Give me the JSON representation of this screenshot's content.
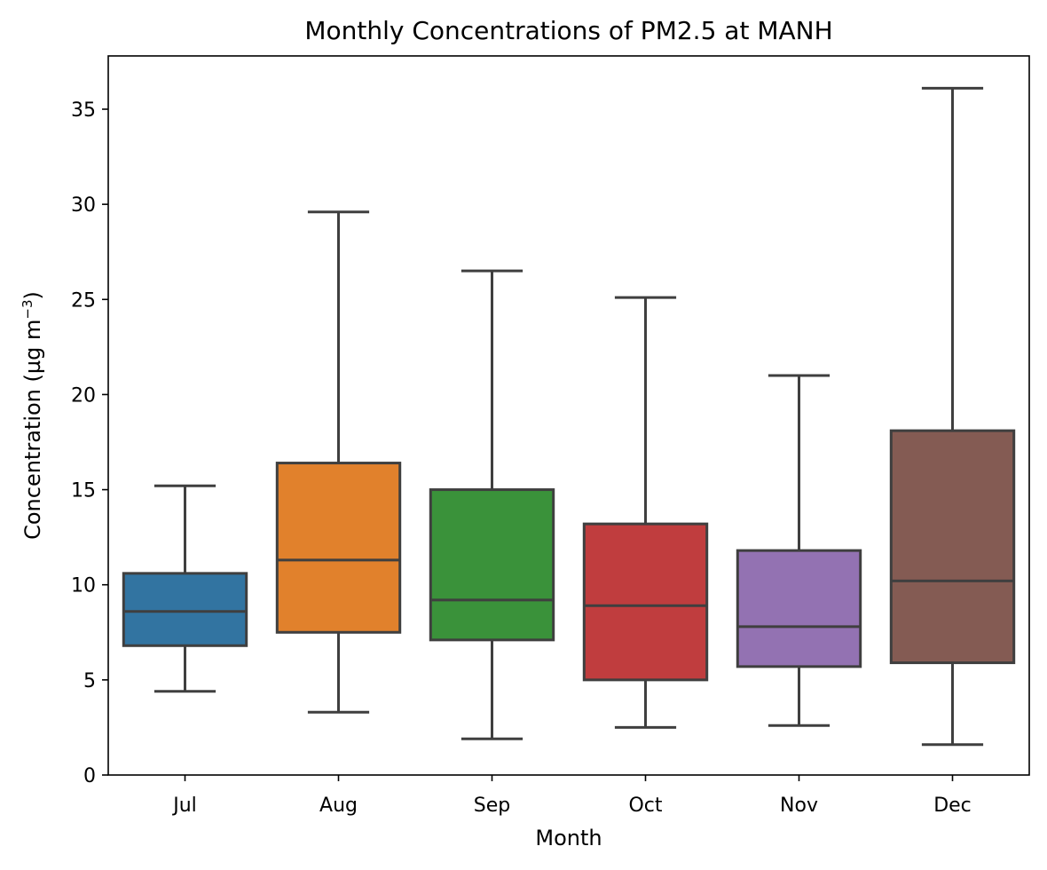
{
  "chart_data": {
    "type": "box",
    "title": "Monthly Concentrations of PM2.5 at MANH",
    "xlabel": "Month",
    "ylabel": "Concentration (µg m",
    "ylabel_sup": "−3",
    "ylabel_close": ")",
    "ylim": [
      0,
      37.8
    ],
    "yticks": [
      0,
      5,
      10,
      15,
      20,
      25,
      30,
      35
    ],
    "grid": false,
    "categories": [
      "Jul",
      "Aug",
      "Sep",
      "Oct",
      "Nov",
      "Dec"
    ],
    "boxes": [
      {
        "whisker_low": 4.4,
        "q1": 6.8,
        "median": 8.6,
        "q3": 10.6,
        "whisker_high": 15.2,
        "color": "#3274a1"
      },
      {
        "whisker_low": 3.3,
        "q1": 7.5,
        "median": 11.3,
        "q3": 16.4,
        "whisker_high": 29.6,
        "color": "#e1812c"
      },
      {
        "whisker_low": 1.9,
        "q1": 7.1,
        "median": 9.2,
        "q3": 15.0,
        "whisker_high": 26.5,
        "color": "#3a923a"
      },
      {
        "whisker_low": 2.5,
        "q1": 5.0,
        "median": 8.9,
        "q3": 13.2,
        "whisker_high": 25.1,
        "color": "#c03d3e"
      },
      {
        "whisker_low": 2.6,
        "q1": 5.7,
        "median": 7.8,
        "q3": 11.8,
        "whisker_high": 21.0,
        "color": "#9372b2"
      },
      {
        "whisker_low": 1.6,
        "q1": 5.9,
        "median": 10.2,
        "q3": 18.1,
        "whisker_high": 36.1,
        "color": "#845b53"
      }
    ]
  }
}
